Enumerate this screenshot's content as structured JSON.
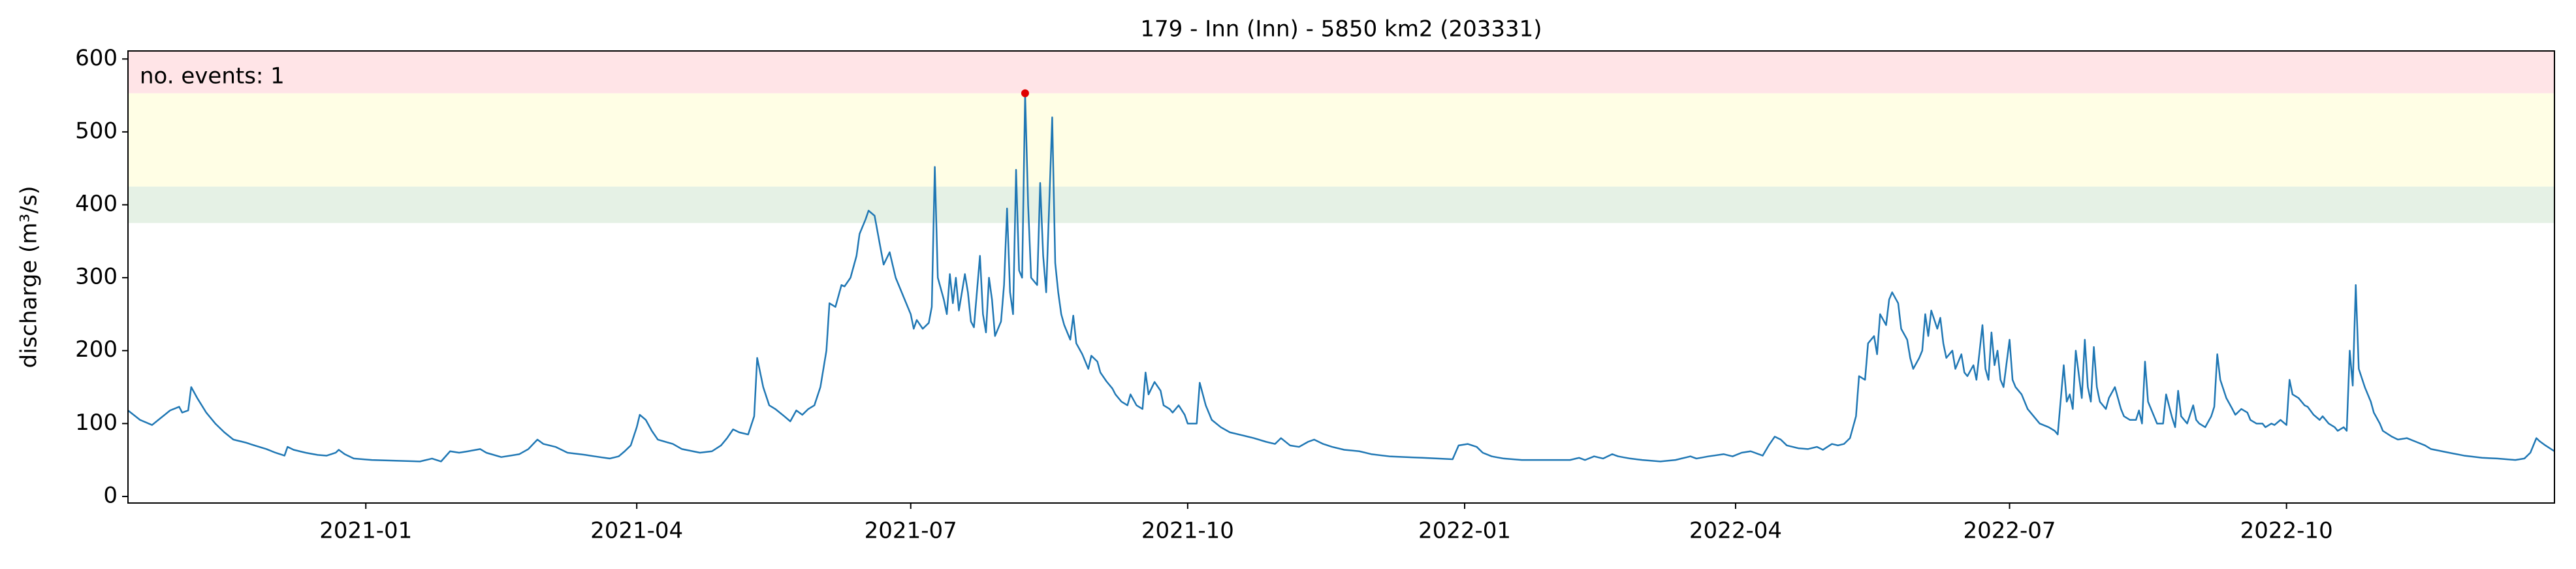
{
  "chart_data": {
    "type": "line",
    "title": "179 - Inn (Inn) - 5850 km2 (203331)",
    "y_label": "discharge (m³/s)",
    "annotation": "no. events: 1",
    "annotation_color": "#e00000",
    "event_color": "#e00000",
    "color": "#1f77b4",
    "bands": [
      {
        "from": 375,
        "to": 425,
        "color": "#e5f1e5"
      },
      {
        "from": 425,
        "to": 553,
        "color": "#fffee5"
      },
      {
        "from": 553,
        "to": 611,
        "color": "#ffe4e7"
      }
    ],
    "xlim": [
      18549,
      19355
    ],
    "ylim": [
      -9,
      611
    ],
    "xticks": [
      {
        "value": 18628,
        "label": "2021-01"
      },
      {
        "value": 18718,
        "label": "2021-04"
      },
      {
        "value": 18809,
        "label": "2021-07"
      },
      {
        "value": 18901,
        "label": "2021-10"
      },
      {
        "value": 18993,
        "label": "2022-01"
      },
      {
        "value": 19083,
        "label": "2022-04"
      },
      {
        "value": 19174,
        "label": "2022-07"
      },
      {
        "value": 19266,
        "label": "2022-10"
      }
    ],
    "yticks": [
      0,
      100,
      200,
      300,
      400,
      500,
      600
    ],
    "x": [
      18549,
      18553,
      18557,
      18560,
      18563,
      18566,
      18567,
      18569,
      18570,
      18572,
      18575,
      18578,
      18581,
      18584,
      18588,
      18591,
      18595,
      18598,
      18601,
      18602,
      18604,
      18608,
      18612,
      18615,
      18618,
      18619,
      18621,
      18624,
      18630,
      18638,
      18646,
      18650,
      18653,
      18656,
      18659,
      18662,
      18666,
      18668,
      18673,
      18679,
      18682,
      18685,
      18687,
      18691,
      18695,
      18701,
      18704,
      18709,
      18712,
      18714,
      18716,
      18718,
      18719,
      18721,
      18723,
      18725,
      18730,
      18733,
      18739,
      18743,
      18746,
      18748,
      18750,
      18752,
      18755,
      18757,
      18758,
      18760,
      18762,
      18764,
      18767,
      18769,
      18771,
      18773,
      18775,
      18777,
      18779,
      18781,
      18782,
      18784,
      18786,
      18787,
      18789,
      18791,
      18792,
      18794,
      18795,
      18797,
      18799,
      18800,
      18802,
      18804,
      18805,
      18807,
      18809,
      18810,
      18811,
      18813,
      18815,
      18816,
      18817,
      18818,
      18820,
      18821,
      18822,
      18823,
      18824,
      18825,
      18827,
      18828,
      18829,
      18830,
      18832,
      18833,
      18834,
      18835,
      18836,
      18837,
      18839,
      18840,
      18841,
      18842,
      18843,
      18844,
      18845,
      18846,
      18847,
      18848,
      18849,
      18851,
      18852,
      18853,
      18854,
      18856,
      18857,
      18858,
      18859,
      18860,
      18862,
      18863,
      18864,
      18866,
      18868,
      18869,
      18871,
      18872,
      18874,
      18876,
      18877,
      18879,
      18881,
      18882,
      18884,
      18886,
      18887,
      18888,
      18890,
      18892,
      18893,
      18895,
      18896,
      18898,
      18900,
      18901,
      18904,
      18905,
      18907,
      18909,
      18912,
      18915,
      18919,
      18923,
      18927,
      18930,
      18932,
      18935,
      18938,
      18941,
      18943,
      18946,
      18949,
      18953,
      18958,
      18962,
      18968,
      18973,
      18979,
      18984,
      18989,
      18991,
      18994,
      18997,
      18999,
      19002,
      19006,
      19012,
      19017,
      19022,
      19028,
      19031,
      19033,
      19036,
      19039,
      19042,
      19044,
      19048,
      19052,
      19058,
      19063,
      19068,
      19070,
      19074,
      19079,
      19082,
      19085,
      19088,
      19092,
      19094,
      19096,
      19098,
      19100,
      19104,
      19107,
      19110,
      19112,
      19115,
      19117,
      19119,
      19121,
      19123,
      19124,
      19126,
      19127,
      19129,
      19130,
      19131,
      19133,
      19134,
      19135,
      19137,
      19138,
      19140,
      19141,
      19142,
      19144,
      19145,
      19146,
      19147,
      19148,
      19150,
      19151,
      19152,
      19153,
      19155,
      19156,
      19158,
      19159,
      19160,
      19162,
      19163,
      19165,
      19166,
      19167,
      19168,
      19169,
      19170,
      19171,
      19172,
      19174,
      19175,
      19176,
      19178,
      19180,
      19182,
      19184,
      19187,
      19189,
      19190,
      19192,
      19193,
      19194,
      19195,
      19196,
      19198,
      19199,
      19200,
      19201,
      19202,
      19203,
      19204,
      19206,
      19207,
      19209,
      19211,
      19212,
      19214,
      19216,
      19217,
      19218,
      19219,
      19220,
      19222,
      19223,
      19225,
      19226,
      19228,
      19229,
      19230,
      19231,
      19233,
      19235,
      19236,
      19237,
      19239,
      19241,
      19242,
      19243,
      19244,
      19246,
      19248,
      19249,
      19251,
      19253,
      19254,
      19256,
      19258,
      19259,
      19261,
      19262,
      19264,
      19266,
      19267,
      19268,
      19270,
      19272,
      19273,
      19275,
      19277,
      19278,
      19280,
      19282,
      19283,
      19285,
      19286,
      19287,
      19288,
      19289,
      19290,
      19292,
      19294,
      19295,
      19297,
      19298,
      19301,
      19303,
      19306,
      19309,
      19312,
      19314,
      19320,
      19325,
      19331,
      19336,
      19342,
      19345,
      19347,
      19349,
      19350,
      19352,
      19355
    ],
    "values": [
      118,
      105,
      98,
      108,
      118,
      123,
      115,
      118,
      150,
      135,
      115,
      100,
      88,
      78,
      74,
      70,
      65,
      60,
      56,
      68,
      64,
      60,
      57,
      56,
      60,
      64,
      58,
      52,
      50,
      49,
      48,
      52,
      48,
      62,
      60,
      62,
      65,
      60,
      54,
      58,
      65,
      78,
      72,
      68,
      60,
      57,
      55,
      52,
      55,
      62,
      70,
      95,
      112,
      105,
      90,
      78,
      72,
      65,
      60,
      62,
      70,
      80,
      92,
      88,
      85,
      110,
      190,
      150,
      125,
      120,
      110,
      103,
      118,
      112,
      120,
      125,
      150,
      200,
      265,
      260,
      290,
      288,
      300,
      330,
      360,
      380,
      392,
      385,
      340,
      318,
      335,
      300,
      290,
      270,
      250,
      230,
      242,
      230,
      238,
      260,
      452,
      300,
      270,
      250,
      305,
      265,
      300,
      255,
      305,
      280,
      240,
      232,
      330,
      250,
      225,
      300,
      270,
      220,
      240,
      290,
      395,
      280,
      250,
      448,
      310,
      300,
      553,
      400,
      300,
      290,
      430,
      330,
      280,
      520,
      320,
      280,
      250,
      235,
      215,
      248,
      210,
      195,
      175,
      193,
      185,
      170,
      158,
      148,
      140,
      130,
      125,
      140,
      125,
      120,
      170,
      140,
      157,
      145,
      125,
      120,
      115,
      125,
      112,
      100,
      100,
      156,
      125,
      105,
      95,
      88,
      84,
      80,
      75,
      72,
      80,
      70,
      68,
      75,
      78,
      72,
      68,
      64,
      62,
      58,
      55,
      54,
      53,
      52,
      51,
      70,
      72,
      68,
      60,
      55,
      52,
      50,
      50,
      50,
      50,
      53,
      50,
      55,
      52,
      58,
      55,
      52,
      50,
      48,
      50,
      55,
      52,
      55,
      58,
      55,
      60,
      62,
      56,
      70,
      82,
      78,
      70,
      66,
      65,
      68,
      64,
      72,
      70,
      72,
      80,
      110,
      165,
      160,
      210,
      220,
      195,
      250,
      235,
      270,
      280,
      265,
      230,
      215,
      190,
      175,
      190,
      200,
      250,
      220,
      255,
      230,
      245,
      210,
      190,
      200,
      175,
      195,
      170,
      165,
      180,
      160,
      235,
      175,
      160,
      225,
      180,
      200,
      160,
      150,
      215,
      160,
      150,
      140,
      120,
      110,
      100,
      95,
      90,
      85,
      180,
      130,
      140,
      120,
      200,
      135,
      215,
      150,
      130,
      205,
      150,
      130,
      120,
      135,
      150,
      120,
      110,
      105,
      105,
      118,
      100,
      185,
      130,
      110,
      100,
      100,
      140,
      108,
      95,
      145,
      110,
      100,
      125,
      105,
      100,
      95,
      110,
      123,
      195,
      160,
      135,
      120,
      112,
      120,
      115,
      105,
      100,
      100,
      95,
      100,
      98,
      105,
      98,
      160,
      140,
      135,
      125,
      123,
      112,
      105,
      110,
      100,
      95,
      90,
      95,
      90,
      200,
      152,
      290,
      175,
      150,
      130,
      115,
      100,
      90,
      82,
      78,
      80,
      75,
      70,
      65,
      60,
      56,
      53,
      52,
      50,
      52,
      60,
      80,
      76,
      70,
      62
    ]
  }
}
